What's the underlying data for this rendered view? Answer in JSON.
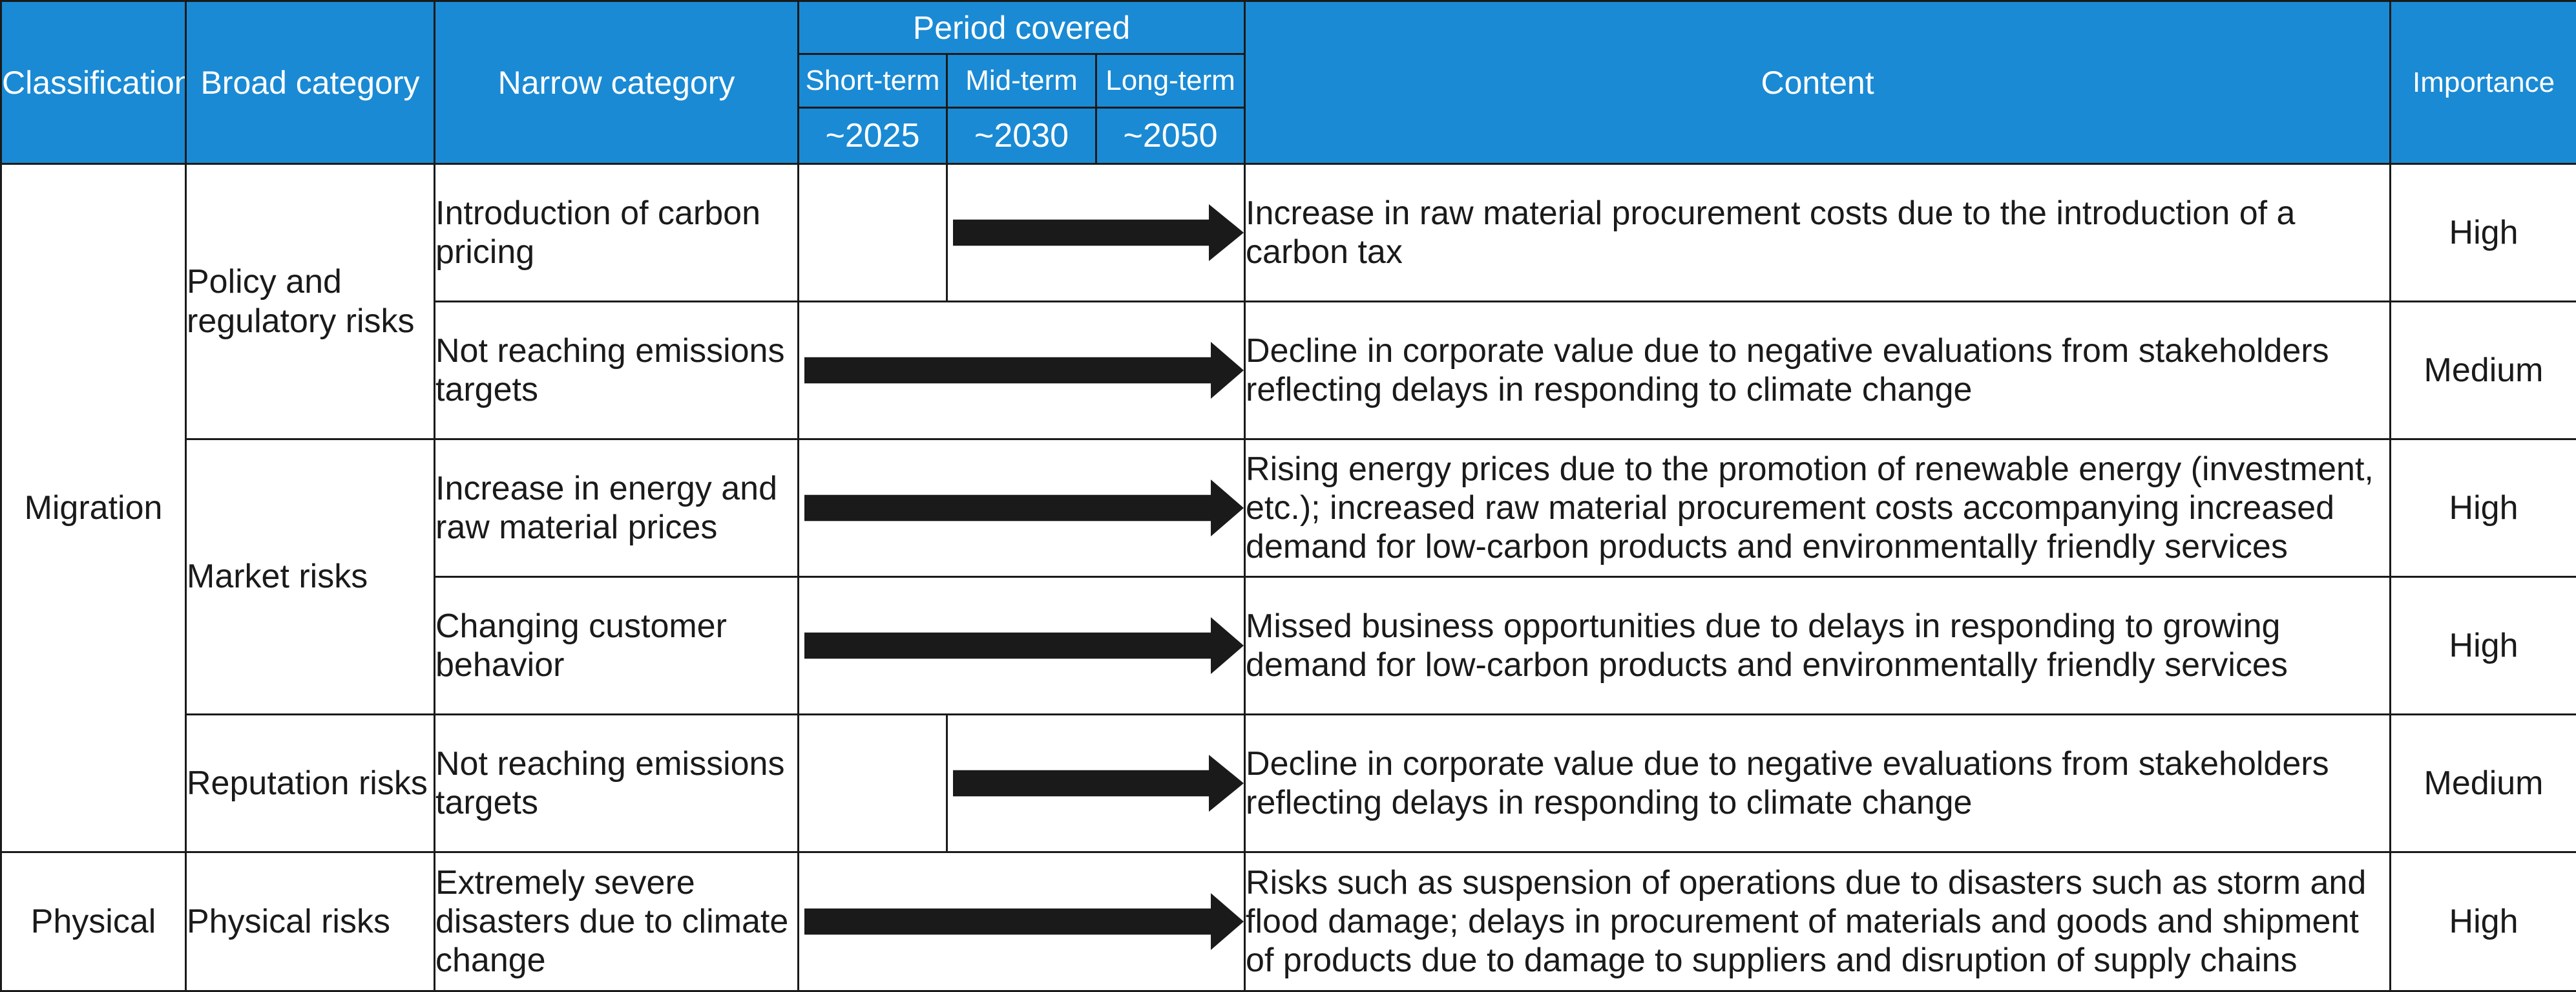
{
  "header": {
    "classification": "Classification",
    "broad_category": "Broad category",
    "narrow_category": "Narrow category",
    "period_covered": "Period covered",
    "short_term": "Short-term",
    "mid_term": "Mid-term",
    "long_term": "Long-term",
    "short_year": "~2025",
    "mid_year": "~2030",
    "long_year": "~2050",
    "content": "Content",
    "importance": "Importance"
  },
  "classifications": {
    "migration": "Migration",
    "physical": "Physical"
  },
  "broad_categories": {
    "policy": "Policy and regulatory risks",
    "market": "Market risks",
    "reputation": "Reputation risks",
    "physical": "Physical risks"
  },
  "rows": [
    {
      "narrow": "Introduction of carbon pricing",
      "period_start": "Mid-term",
      "content": "Increase in raw material procurement costs due to the introduction of a carbon tax",
      "importance": "High"
    },
    {
      "narrow": "Not reaching emissions targets",
      "period_start": "Short-term",
      "content": "Decline in corporate value due to negative evaluations from stakeholders reflecting delays in responding to climate change",
      "importance": "Medium"
    },
    {
      "narrow": "Increase in energy and raw material prices",
      "period_start": "Short-term",
      "content": "Rising energy prices due to the promotion of renewable energy (investment, etc.); increased raw material procurement costs accompanying increased demand for low-carbon products and environmentally friendly services",
      "importance": "High"
    },
    {
      "narrow": "Changing customer behavior",
      "period_start": "Short-term",
      "content": "Missed business opportunities due to delays in responding to growing demand for low-carbon products and environmentally friendly services",
      "importance": "High"
    },
    {
      "narrow": "Not reaching emissions targets",
      "period_start": "Mid-term",
      "content": "Decline in corporate value due to negative evaluations from stakeholders reflecting delays in responding to climate change",
      "importance": "Medium"
    },
    {
      "narrow": "Extremely severe disasters due to climate change",
      "period_start": "Short-term",
      "content": "Risks such as suspension of operations due to disasters such as storm and flood damage; delays in procurement of materials and goods and shipment of products due to damage to suppliers and disruption of supply chains",
      "importance": "High"
    }
  ],
  "colors": {
    "header_bg": "#1a8ad4",
    "header_text": "#ffffff",
    "border": "#1a1a1a",
    "arrow": "#1a1a1a"
  }
}
